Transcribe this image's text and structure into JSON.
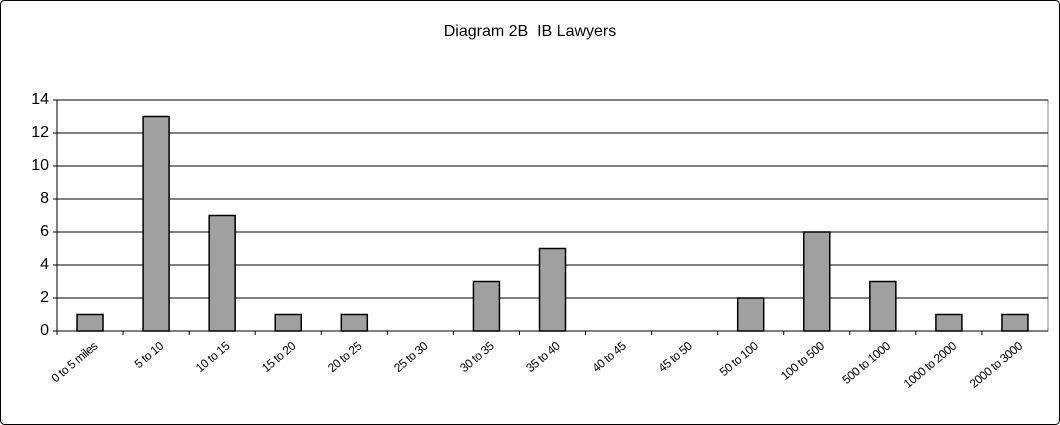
{
  "chart_data": {
    "type": "bar",
    "title": "Diagram 2B  IB Lawyers",
    "categories": [
      "0 to 5 miles",
      "5 to 10",
      "10 to 15",
      "15 to 20",
      "20 to 25",
      "25 to 30",
      "30 to 35",
      "35 to 40",
      "40 to 45",
      "45 to 50",
      "50 to 100",
      "100 to 500",
      "500 to 1000",
      "1000 to 2000",
      "2000 to 3000"
    ],
    "values": [
      1,
      13,
      7,
      1,
      1,
      0,
      3,
      5,
      0,
      0,
      2,
      6,
      3,
      1,
      1
    ],
    "color": "#a0a0a0",
    "ylim": [
      0,
      14
    ],
    "yticks": [
      0,
      2,
      4,
      6,
      8,
      10,
      12,
      14
    ],
    "grid": true
  }
}
